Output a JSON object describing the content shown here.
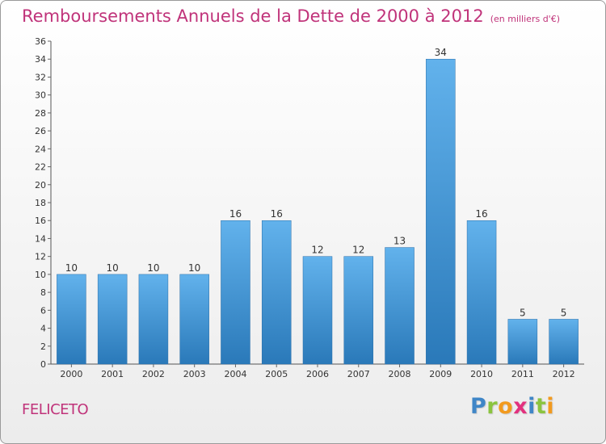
{
  "header": {
    "title": "Remboursements Annuels de la Dette de 2000 à 2012",
    "subtitle": "(en milliers d'€)"
  },
  "footer": {
    "commune": "FELICETO",
    "logo_letters": [
      {
        "char": "P",
        "color": "#3f86c7"
      },
      {
        "char": "r",
        "color": "#8bc43f"
      },
      {
        "char": "o",
        "color": "#f29a1e"
      },
      {
        "char": "x",
        "color": "#e2317e"
      },
      {
        "char": "i",
        "color": "#3f86c7"
      },
      {
        "char": "t",
        "color": "#8bc43f"
      },
      {
        "char": "i",
        "color": "#f29a1e"
      }
    ]
  },
  "colors": {
    "title": "#c0337a",
    "bar_top": "#62b2ec",
    "bar_bottom": "#2a79b9",
    "axis": "#555555",
    "grid_tick": "#666666"
  },
  "chart_data": {
    "type": "bar",
    "title": "Remboursements Annuels de la Dette de 2000 à 2012",
    "subtitle": "(en milliers d'€)",
    "categories": [
      "2000",
      "2001",
      "2002",
      "2003",
      "2004",
      "2005",
      "2006",
      "2007",
      "2008",
      "2009",
      "2010",
      "2011",
      "2012"
    ],
    "values": [
      10,
      10,
      10,
      10,
      16,
      16,
      12,
      12,
      13,
      34,
      16,
      5,
      5
    ],
    "ylim": [
      0,
      36
    ],
    "yticks": [
      0,
      2,
      4,
      6,
      8,
      10,
      12,
      14,
      16,
      18,
      20,
      22,
      24,
      26,
      28,
      30,
      32,
      34,
      36
    ],
    "data_labels": true,
    "grid": false,
    "legend": "none"
  }
}
